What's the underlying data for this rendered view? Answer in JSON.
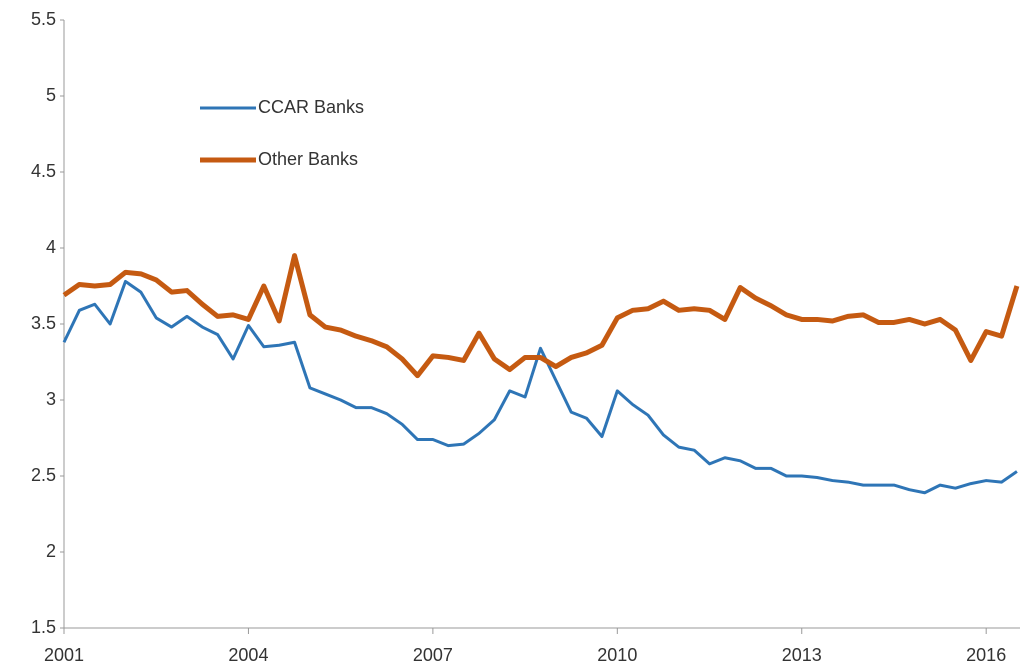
{
  "chart_data": {
    "type": "line",
    "x": [
      2001,
      2001.25,
      2001.5,
      2001.75,
      2002,
      2002.25,
      2002.5,
      2002.75,
      2003,
      2003.25,
      2003.5,
      2003.75,
      2004,
      2004.25,
      2004.5,
      2004.75,
      2005,
      2005.25,
      2005.5,
      2005.75,
      2006,
      2006.25,
      2006.5,
      2006.75,
      2007,
      2007.25,
      2007.5,
      2007.75,
      2008,
      2008.25,
      2008.5,
      2008.75,
      2009,
      2009.25,
      2009.5,
      2009.75,
      2010,
      2010.25,
      2010.5,
      2010.75,
      2011,
      2011.25,
      2011.5,
      2011.75,
      2012,
      2012.25,
      2012.5,
      2012.75,
      2013,
      2013.25,
      2013.5,
      2013.75,
      2014,
      2014.25,
      2014.5,
      2014.75,
      2015,
      2015.25,
      2015.5,
      2015.75,
      2016,
      2016.25,
      2016.5
    ],
    "series": [
      {
        "name": "CCAR Banks",
        "color": "#2e75b6",
        "width": 3,
        "values": [
          3.38,
          3.59,
          3.63,
          3.5,
          3.78,
          3.71,
          3.54,
          3.48,
          3.55,
          3.48,
          3.43,
          3.27,
          3.49,
          3.35,
          3.36,
          3.38,
          3.08,
          3.04,
          3.0,
          2.95,
          2.95,
          2.91,
          2.84,
          2.74,
          2.74,
          2.7,
          2.71,
          2.78,
          2.87,
          3.06,
          3.02,
          3.34,
          3.13,
          2.92,
          2.88,
          2.76,
          3.06,
          2.97,
          2.9,
          2.77,
          2.69,
          2.67,
          2.58,
          2.62,
          2.6,
          2.55,
          2.55,
          2.5,
          2.5,
          2.49,
          2.47,
          2.46,
          2.44,
          2.44,
          2.44,
          2.41,
          2.39,
          2.44,
          2.42,
          2.45,
          2.47,
          2.46,
          2.53
        ]
      },
      {
        "name": "Other Banks",
        "color": "#c55a11",
        "width": 5,
        "values": [
          3.69,
          3.76,
          3.75,
          3.76,
          3.84,
          3.83,
          3.79,
          3.71,
          3.72,
          3.63,
          3.55,
          3.56,
          3.53,
          3.75,
          3.52,
          3.95,
          3.56,
          3.48,
          3.46,
          3.42,
          3.39,
          3.35,
          3.27,
          3.16,
          3.29,
          3.28,
          3.26,
          3.44,
          3.27,
          3.2,
          3.28,
          3.28,
          3.22,
          3.28,
          3.31,
          3.36,
          3.54,
          3.59,
          3.6,
          3.65,
          3.59,
          3.6,
          3.59,
          3.53,
          3.74,
          3.67,
          3.62,
          3.56,
          3.53,
          3.53,
          3.52,
          3.55,
          3.56,
          3.51,
          3.51,
          3.53,
          3.5,
          3.53,
          3.46,
          3.26,
          3.45,
          3.42,
          3.75
        ]
      }
    ],
    "xlim": [
      2001,
      2016.55
    ],
    "xticks": [
      2001,
      2004,
      2007,
      2010,
      2013,
      2016
    ],
    "ylim": [
      1.5,
      5.5
    ],
    "yticks": [
      1.5,
      2,
      2.5,
      3,
      3.5,
      4,
      4.5,
      5,
      5.5
    ],
    "grid": false,
    "legend": "upper left"
  }
}
